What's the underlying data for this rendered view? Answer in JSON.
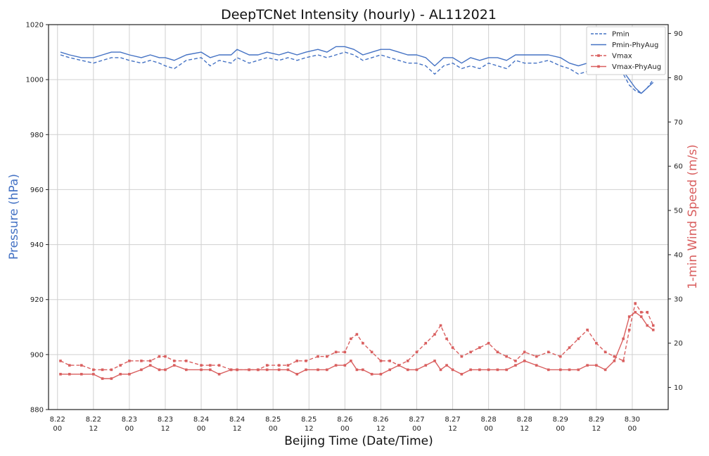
{
  "chart_data": {
    "type": "line",
    "title": "DeepTCNet Intensity (hourly) - AL112021",
    "xlabel": "Beijing Time (Date/Time)",
    "ylabel_left": "Pressure (hPa)",
    "ylabel_right": "1-min Wind Speed (m/s)",
    "ylim_left": [
      880,
      1020
    ],
    "ylim_right": [
      5,
      92
    ],
    "yticks_left": [
      880,
      900,
      920,
      940,
      960,
      980,
      1000,
      1020
    ],
    "yticks_right": [
      10,
      20,
      30,
      40,
      50,
      60,
      70,
      80,
      90
    ],
    "x_hours_range": [
      -3,
      204
    ],
    "xticks": [
      {
        "hour": 0,
        "date": "8.22",
        "time": "00"
      },
      {
        "hour": 12,
        "date": "8.22",
        "time": "12"
      },
      {
        "hour": 24,
        "date": "8.23",
        "time": "00"
      },
      {
        "hour": 36,
        "date": "8.23",
        "time": "12"
      },
      {
        "hour": 48,
        "date": "8.24",
        "time": "00"
      },
      {
        "hour": 60,
        "date": "8.24",
        "time": "12"
      },
      {
        "hour": 72,
        "date": "8.25",
        "time": "00"
      },
      {
        "hour": 84,
        "date": "8.25",
        "time": "12"
      },
      {
        "hour": 96,
        "date": "8.26",
        "time": "00"
      },
      {
        "hour": 108,
        "date": "8.26",
        "time": "12"
      },
      {
        "hour": 120,
        "date": "8.27",
        "time": "00"
      },
      {
        "hour": 132,
        "date": "8.27",
        "time": "12"
      },
      {
        "hour": 144,
        "date": "8.28",
        "time": "00"
      },
      {
        "hour": 156,
        "date": "8.28",
        "time": "12"
      },
      {
        "hour": 168,
        "date": "8.29",
        "time": "00"
      },
      {
        "hour": 180,
        "date": "8.29",
        "time": "12"
      },
      {
        "hour": 192,
        "date": "8.30",
        "time": "00"
      }
    ],
    "grid": true,
    "legend_position": "top-right",
    "colors": {
      "pressure": "#4472c4",
      "wind": "#d95f5f"
    },
    "series": [
      {
        "name": "Pmin",
        "axis": "left",
        "style": "dashed",
        "marker": "none",
        "x": [
          1,
          4,
          8,
          12,
          15,
          18,
          21,
          24,
          28,
          31,
          34,
          36,
          39,
          43,
          48,
          51,
          54,
          58,
          60,
          64,
          67,
          70,
          74,
          77,
          80,
          83,
          87,
          90,
          93,
          96,
          99,
          102,
          105,
          108,
          111,
          114,
          117,
          120,
          123,
          126,
          129,
          132,
          135,
          138,
          141,
          144,
          147,
          150,
          153,
          156,
          160,
          164,
          168,
          171,
          174,
          177,
          180,
          183,
          186,
          189,
          191,
          193,
          195,
          197,
          199
        ],
        "y": [
          1009,
          1008,
          1007,
          1006,
          1007,
          1008,
          1008,
          1007,
          1006,
          1007,
          1006,
          1005,
          1004,
          1007,
          1008,
          1005,
          1007,
          1006,
          1008,
          1006,
          1007,
          1008,
          1007,
          1008,
          1007,
          1008,
          1009,
          1008,
          1009,
          1010,
          1009,
          1007,
          1008,
          1009,
          1008,
          1007,
          1006,
          1006,
          1005,
          1002,
          1005,
          1006,
          1004,
          1005,
          1004,
          1006,
          1005,
          1004,
          1007,
          1006,
          1006,
          1007,
          1005,
          1004,
          1002,
          1003,
          1004,
          1004,
          1003,
          1002,
          998,
          996,
          995,
          997,
          1000
        ]
      },
      {
        "name": "Pmin-PhyAug",
        "axis": "left",
        "style": "solid",
        "marker": "none",
        "x": [
          1,
          4,
          8,
          12,
          15,
          18,
          21,
          24,
          28,
          31,
          34,
          36,
          39,
          43,
          48,
          51,
          54,
          58,
          60,
          64,
          67,
          70,
          74,
          77,
          80,
          83,
          87,
          90,
          93,
          96,
          99,
          102,
          105,
          108,
          111,
          114,
          117,
          120,
          123,
          126,
          129,
          132,
          135,
          138,
          141,
          144,
          147,
          150,
          153,
          156,
          160,
          164,
          168,
          171,
          174,
          177,
          180,
          183,
          186,
          189,
          191,
          193,
          195,
          197,
          199
        ],
        "y": [
          1010,
          1009,
          1008,
          1008,
          1009,
          1010,
          1010,
          1009,
          1008,
          1009,
          1008,
          1008,
          1007,
          1009,
          1010,
          1008,
          1009,
          1009,
          1011,
          1009,
          1009,
          1010,
          1009,
          1010,
          1009,
          1010,
          1011,
          1010,
          1012,
          1012,
          1011,
          1009,
          1010,
          1011,
          1011,
          1010,
          1009,
          1009,
          1008,
          1005,
          1008,
          1008,
          1006,
          1008,
          1007,
          1008,
          1008,
          1007,
          1009,
          1009,
          1009,
          1009,
          1008,
          1006,
          1005,
          1006,
          1006,
          1005,
          1004,
          1003,
          1000,
          997,
          995,
          997,
          999
        ]
      },
      {
        "name": "Vmax",
        "axis": "right",
        "style": "dashed",
        "marker": "square",
        "x": [
          1,
          4,
          8,
          12,
          15,
          18,
          21,
          24,
          28,
          31,
          34,
          36,
          39,
          43,
          48,
          51,
          54,
          58,
          60,
          64,
          67,
          70,
          74,
          77,
          80,
          83,
          87,
          90,
          93,
          96,
          98,
          100,
          102,
          105,
          108,
          111,
          114,
          117,
          120,
          123,
          126,
          128,
          130,
          132,
          135,
          138,
          141,
          144,
          147,
          150,
          153,
          156,
          160,
          164,
          168,
          171,
          174,
          177,
          180,
          183,
          186,
          189,
          191,
          193,
          195,
          197,
          199
        ],
        "y": [
          16,
          15,
          15,
          14,
          14,
          14,
          15,
          16,
          16,
          16,
          17,
          17,
          16,
          16,
          15,
          15,
          15,
          14,
          14,
          14,
          14,
          15,
          15,
          15,
          16,
          16,
          17,
          17,
          18,
          18,
          21,
          22,
          20,
          18,
          16,
          16,
          15,
          16,
          18,
          20,
          22,
          24,
          21,
          19,
          17,
          18,
          19,
          20,
          18,
          17,
          16,
          18,
          17,
          18,
          17,
          19,
          21,
          23,
          20,
          18,
          17,
          16,
          23,
          29,
          27,
          27,
          24
        ]
      },
      {
        "name": "Vmax-PhyAug",
        "axis": "right",
        "style": "solid",
        "marker": "square",
        "x": [
          1,
          4,
          8,
          12,
          15,
          18,
          21,
          24,
          28,
          31,
          34,
          36,
          39,
          43,
          48,
          51,
          54,
          58,
          60,
          64,
          67,
          70,
          74,
          77,
          80,
          83,
          87,
          90,
          93,
          96,
          98,
          100,
          102,
          105,
          108,
          111,
          114,
          117,
          120,
          123,
          126,
          128,
          130,
          132,
          135,
          138,
          141,
          144,
          147,
          150,
          153,
          156,
          160,
          164,
          168,
          171,
          174,
          177,
          180,
          183,
          186,
          189,
          191,
          193,
          195,
          197,
          199
        ],
        "y": [
          13,
          13,
          13,
          13,
          12,
          12,
          13,
          13,
          14,
          15,
          14,
          14,
          15,
          14,
          14,
          14,
          13,
          14,
          14,
          14,
          14,
          14,
          14,
          14,
          13,
          14,
          14,
          14,
          15,
          15,
          16,
          14,
          14,
          13,
          13,
          14,
          15,
          14,
          14,
          15,
          16,
          14,
          15,
          14,
          13,
          14,
          14,
          14,
          14,
          14,
          15,
          16,
          15,
          14,
          14,
          14,
          14,
          15,
          15,
          14,
          16,
          21,
          26,
          27,
          26,
          24,
          23
        ]
      }
    ]
  }
}
